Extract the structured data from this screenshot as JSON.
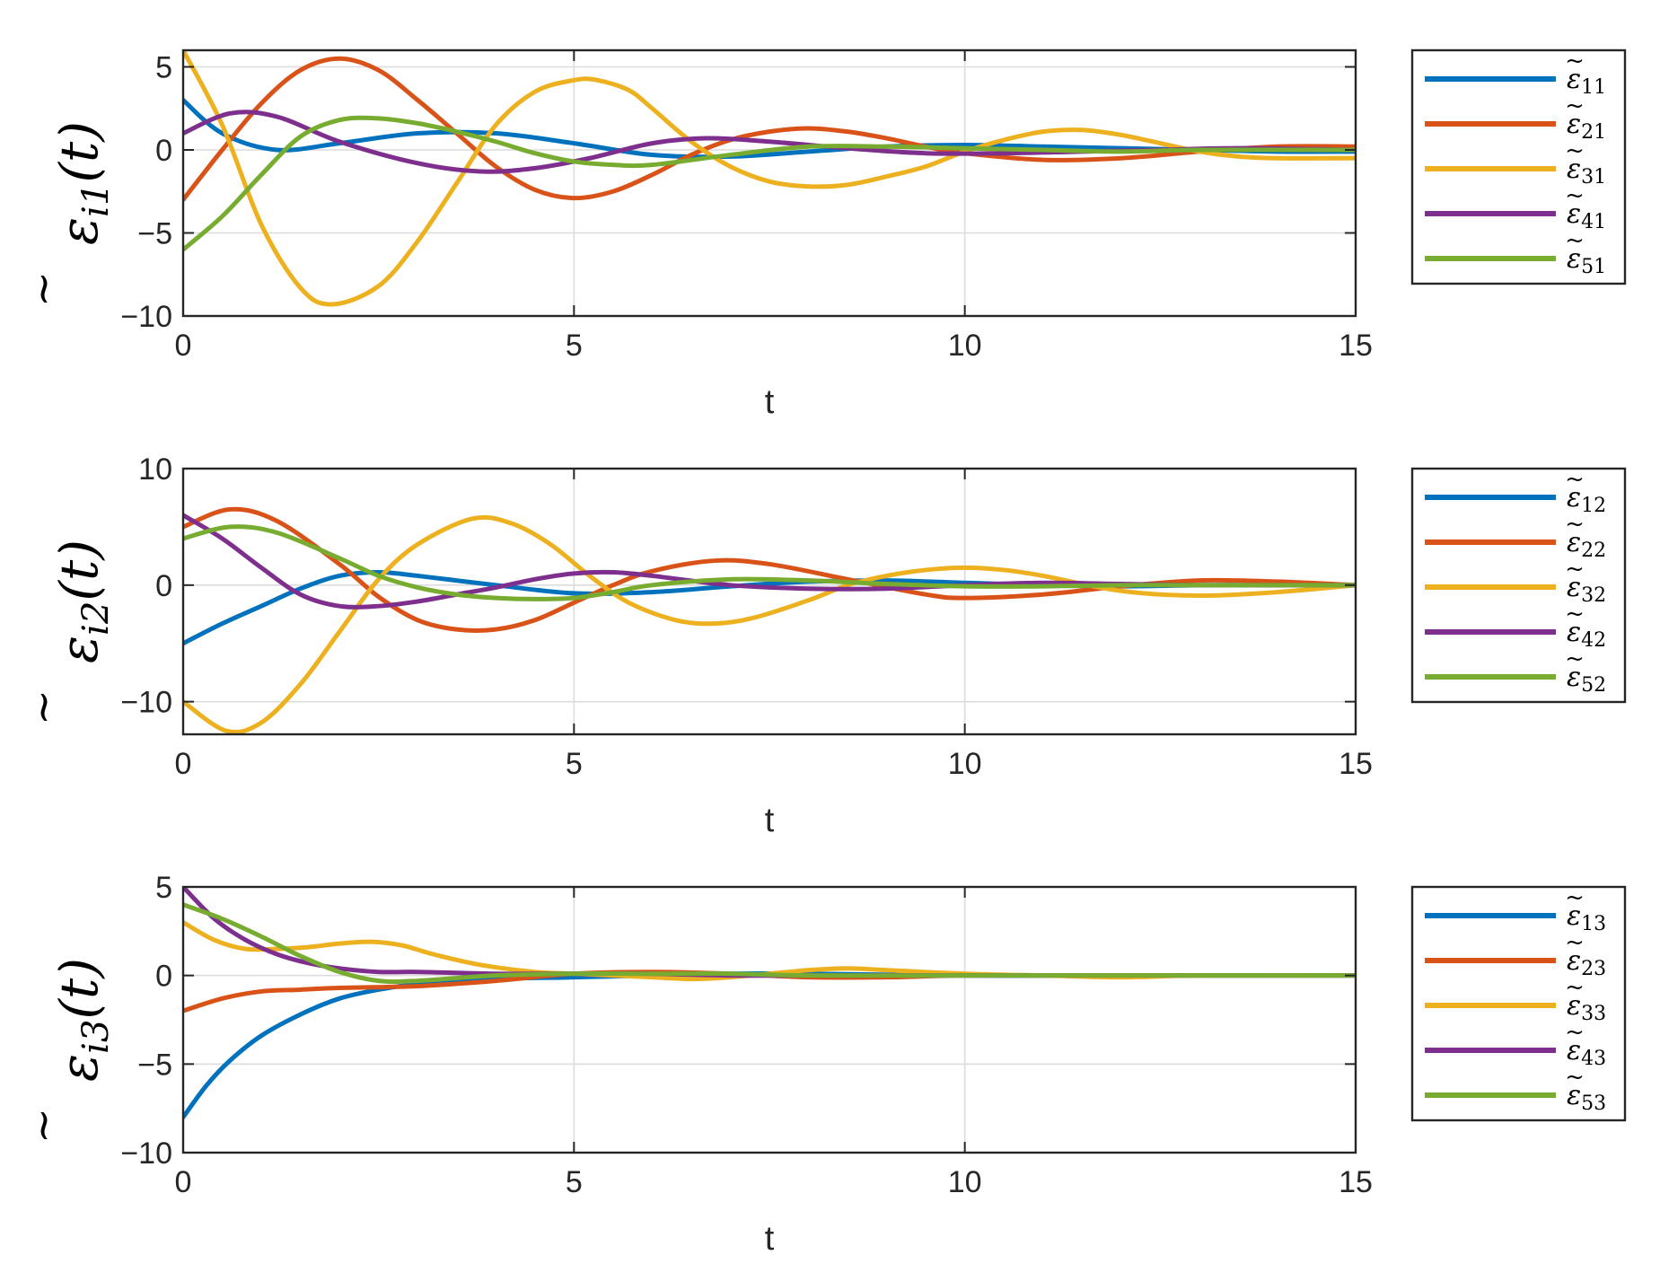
{
  "chart_data": [
    {
      "type": "line",
      "ylabel": {
        "base": "ε",
        "sub": "i1",
        "arg": "(t)"
      },
      "xlabel": "t",
      "xlim": [
        0,
        15
      ],
      "ylim": [
        -10,
        6
      ],
      "xticks": [
        "0",
        "5",
        "10",
        "15"
      ],
      "yticks": [
        {
          "v": 5,
          "label": "5"
        },
        {
          "v": 0,
          "label": "0"
        },
        {
          "v": -5,
          "label": "−5"
        },
        {
          "v": -10,
          "label": "−10"
        }
      ],
      "grid": true,
      "legend": "right-outside",
      "series": [
        {
          "name": "ε̃11",
          "base": "ε",
          "sub": "11",
          "color": "#0072BD",
          "x": [
            0,
            0.5,
            1.2,
            2,
            3,
            4,
            5,
            6,
            7,
            8,
            9,
            10,
            11,
            12,
            13,
            14,
            15
          ],
          "y": [
            3,
            1,
            0,
            0.4,
            1,
            1,
            0.4,
            -0.3,
            -0.4,
            -0.1,
            0.2,
            0.3,
            0.2,
            0.1,
            0,
            -0.1,
            -0.1
          ]
        },
        {
          "name": "ε̃21",
          "base": "ε",
          "sub": "21",
          "color": "#D95319",
          "x": [
            0,
            0.5,
            1,
            1.5,
            2,
            2.5,
            3,
            3.5,
            4,
            4.5,
            5,
            5.5,
            6,
            6.5,
            7,
            7.5,
            8,
            8.5,
            9,
            9.5,
            10,
            11,
            12,
            13,
            14,
            15
          ],
          "y": [
            -3,
            0,
            2.8,
            4.8,
            5.5,
            4.8,
            3,
            1,
            -1,
            -2.4,
            -2.9,
            -2.5,
            -1.5,
            -0.3,
            0.6,
            1.1,
            1.3,
            1.1,
            0.7,
            0.2,
            -0.2,
            -0.6,
            -0.5,
            -0.1,
            0.2,
            0.2
          ]
        },
        {
          "name": "ε̃31",
          "base": "ε",
          "sub": "31",
          "color": "#EDB120",
          "x": [
            0,
            0.5,
            1,
            1.5,
            1.9,
            2.5,
            3,
            3.5,
            4,
            4.5,
            5,
            5.3,
            5.7,
            6,
            6.5,
            7,
            7.5,
            8,
            8.5,
            9,
            9.5,
            10,
            10.5,
            11,
            11.5,
            12,
            12.5,
            13,
            13.5,
            14,
            15
          ],
          "y": [
            6,
            1.5,
            -4.5,
            -8.3,
            -9.3,
            -8.2,
            -5.5,
            -2,
            1.5,
            3.5,
            4.2,
            4.2,
            3.6,
            2.5,
            0.5,
            -1,
            -1.9,
            -2.2,
            -2.1,
            -1.6,
            -1,
            -0.1,
            0.6,
            1.1,
            1.2,
            0.9,
            0.4,
            -0.1,
            -0.4,
            -0.5,
            -0.5
          ]
        },
        {
          "name": "ε̃41",
          "base": "ε",
          "sub": "41",
          "color": "#7E2F8E",
          "x": [
            0,
            0.6,
            1.2,
            2,
            3,
            3.8,
            4.5,
            5.2,
            6,
            6.7,
            7.5,
            8.5,
            9.5,
            10.5,
            11.5,
            12.5,
            13.5,
            15
          ],
          "y": [
            1,
            2.2,
            2,
            0.5,
            -0.8,
            -1.3,
            -1.1,
            -0.5,
            0.4,
            0.7,
            0.5,
            0.1,
            -0.2,
            -0.2,
            -0.1,
            0,
            0.1,
            0
          ]
        },
        {
          "name": "ε̃51",
          "base": "ε",
          "sub": "51",
          "color": "#77AC30",
          "x": [
            0,
            0.5,
            1,
            1.5,
            2,
            2.5,
            3,
            3.5,
            4,
            4.5,
            5,
            5.5,
            6,
            7,
            8,
            9,
            10,
            11,
            12,
            13,
            15
          ],
          "y": [
            -6,
            -4,
            -1.5,
            0.8,
            1.8,
            1.9,
            1.6,
            1.1,
            0.5,
            -0.2,
            -0.7,
            -0.9,
            -0.9,
            -0.3,
            0.2,
            0.2,
            0.1,
            0,
            -0.1,
            0,
            0
          ]
        }
      ]
    },
    {
      "type": "line",
      "ylabel": {
        "base": "ε",
        "sub": "i2",
        "arg": "(t)"
      },
      "xlabel": "t",
      "xlim": [
        0,
        15
      ],
      "ylim": [
        -12.8,
        10
      ],
      "xticks": [
        "0",
        "5",
        "10",
        "15"
      ],
      "yticks": [
        {
          "v": 10,
          "label": "10"
        },
        {
          "v": 0,
          "label": "0"
        },
        {
          "v": -10,
          "label": "−10"
        }
      ],
      "grid": true,
      "legend": "right-outside",
      "series": [
        {
          "name": "ε̃12",
          "base": "ε",
          "sub": "12",
          "color": "#0072BD",
          "x": [
            0,
            0.5,
            1,
            1.5,
            2,
            2.5,
            3,
            4,
            5,
            6,
            7,
            8,
            9,
            10,
            11,
            12,
            13,
            14,
            15
          ],
          "y": [
            -5,
            -3.3,
            -1.8,
            -0.3,
            0.8,
            1.1,
            0.8,
            0,
            -0.7,
            -0.6,
            -0.1,
            0.3,
            0.4,
            0.2,
            0,
            -0.1,
            0,
            0,
            0
          ]
        },
        {
          "name": "ε̃22",
          "base": "ε",
          "sub": "22",
          "color": "#D95319",
          "x": [
            0,
            0.6,
            1.2,
            2,
            2.5,
            3,
            3.5,
            4,
            4.5,
            5,
            5.5,
            6,
            6.8,
            7.5,
            8.5,
            9.5,
            10,
            11,
            12,
            13,
            14,
            15
          ],
          "y": [
            5,
            6.5,
            5.5,
            1.8,
            -1,
            -3,
            -3.8,
            -3.8,
            -3,
            -1.5,
            0,
            1.2,
            2.1,
            1.8,
            0.5,
            -0.8,
            -1.1,
            -0.8,
            -0.1,
            0.4,
            0.3,
            0
          ]
        },
        {
          "name": "ε̃32",
          "base": "ε",
          "sub": "32",
          "color": "#EDB120",
          "x": [
            0,
            0.55,
            1,
            1.5,
            2,
            2.5,
            3,
            3.7,
            4.2,
            4.7,
            5.2,
            5.7,
            6.3,
            6.8,
            7.3,
            8,
            8.5,
            9,
            9.5,
            10,
            10.5,
            11,
            12,
            13,
            14,
            15
          ],
          "y": [
            -10,
            -12.5,
            -11.8,
            -8.5,
            -4,
            0.5,
            3.5,
            5.7,
            5.3,
            3.5,
            0.8,
            -1.5,
            -3,
            -3.3,
            -2.8,
            -1.3,
            0,
            0.8,
            1.3,
            1.5,
            1.3,
            0.8,
            -0.5,
            -0.9,
            -0.6,
            0
          ]
        },
        {
          "name": "ε̃42",
          "base": "ε",
          "sub": "42",
          "color": "#7E2F8E",
          "x": [
            0,
            0.5,
            1,
            1.5,
            2,
            2.5,
            3,
            3.5,
            4,
            4.5,
            5,
            5.5,
            6,
            7,
            8,
            9,
            10,
            11,
            12,
            13,
            14,
            15
          ],
          "y": [
            6,
            4,
            1.5,
            -0.8,
            -1.8,
            -1.8,
            -1.4,
            -0.8,
            -0.2,
            0.5,
            1,
            1.1,
            0.8,
            0,
            -0.3,
            -0.3,
            0,
            0.2,
            0.1,
            0,
            0,
            0
          ]
        },
        {
          "name": "ε̃52",
          "base": "ε",
          "sub": "52",
          "color": "#77AC30",
          "x": [
            0,
            0.6,
            1.2,
            2,
            2.5,
            3,
            3.5,
            4,
            4.5,
            5,
            5.5,
            6,
            7,
            8,
            9,
            10,
            11,
            12,
            13,
            15
          ],
          "y": [
            4,
            5,
            4.5,
            2.3,
            0.8,
            -0.2,
            -0.8,
            -1.1,
            -1.2,
            -1.1,
            -0.6,
            0,
            0.5,
            0.4,
            0.1,
            -0.1,
            -0.1,
            0,
            0,
            0
          ]
        }
      ]
    },
    {
      "type": "line",
      "ylabel": {
        "base": "ε",
        "sub": "i3",
        "arg": "(t)"
      },
      "xlabel": "t",
      "xlim": [
        0,
        15
      ],
      "ylim": [
        -10,
        5
      ],
      "xticks": [
        "0",
        "5",
        "10",
        "15"
      ],
      "yticks": [
        {
          "v": 5,
          "label": "5"
        },
        {
          "v": 0,
          "label": "0"
        },
        {
          "v": -5,
          "label": "−5"
        },
        {
          "v": -10,
          "label": "−10"
        }
      ],
      "grid": true,
      "legend": "right-outside",
      "series": [
        {
          "name": "ε̃13",
          "base": "ε",
          "sub": "13",
          "color": "#0072BD",
          "x": [
            0,
            0.3,
            0.6,
            1,
            1.5,
            2,
            2.5,
            3,
            4,
            5,
            6,
            7,
            8,
            10,
            12,
            15
          ],
          "y": [
            -8,
            -6.2,
            -4.8,
            -3.4,
            -2.2,
            -1.3,
            -0.8,
            -0.5,
            -0.2,
            -0.1,
            0,
            0.1,
            0.1,
            0,
            0,
            0
          ]
        },
        {
          "name": "ε̃23",
          "base": "ε",
          "sub": "23",
          "color": "#D95319",
          "x": [
            0,
            0.5,
            1,
            1.5,
            2,
            3,
            4,
            5,
            6,
            7,
            8,
            9,
            10,
            12,
            15
          ],
          "y": [
            -2,
            -1.3,
            -0.9,
            -0.8,
            -0.7,
            -0.6,
            -0.3,
            0.1,
            0.2,
            0.1,
            -0.1,
            -0.1,
            0,
            0,
            0
          ]
        },
        {
          "name": "ε̃33",
          "base": "ε",
          "sub": "33",
          "color": "#EDB120",
          "x": [
            0,
            0.4,
            0.8,
            1.2,
            1.6,
            2,
            2.4,
            2.8,
            3.2,
            3.8,
            4.5,
            5,
            5.5,
            6,
            6.5,
            7,
            7.5,
            8,
            8.5,
            9,
            10,
            11,
            12,
            13,
            15
          ],
          "y": [
            3,
            2,
            1.5,
            1.5,
            1.6,
            1.8,
            1.9,
            1.7,
            1.2,
            0.6,
            0.2,
            0.1,
            0,
            -0.1,
            -0.2,
            -0.1,
            0.1,
            0.3,
            0.4,
            0.3,
            0.1,
            0,
            -0.1,
            0,
            0
          ]
        },
        {
          "name": "ε̃43",
          "base": "ε",
          "sub": "43",
          "color": "#7E2F8E",
          "x": [
            0,
            0.4,
            0.8,
            1.2,
            1.6,
            2,
            2.5,
            3,
            4,
            5,
            6,
            7,
            8,
            10,
            12,
            15
          ],
          "y": [
            5,
            3.2,
            2,
            1.2,
            0.7,
            0.4,
            0.2,
            0.2,
            0.1,
            0.1,
            0.1,
            0,
            0,
            0,
            0,
            0
          ]
        },
        {
          "name": "ε̃53",
          "base": "ε",
          "sub": "53",
          "color": "#77AC30",
          "x": [
            0,
            0.5,
            1,
            1.5,
            2,
            2.5,
            3,
            4,
            5,
            6,
            7,
            8,
            10,
            12,
            15
          ],
          "y": [
            4,
            3.2,
            2.2,
            1.1,
            0.2,
            -0.3,
            -0.3,
            0,
            0.1,
            0.1,
            0.1,
            0,
            0,
            0,
            0
          ]
        }
      ]
    }
  ]
}
